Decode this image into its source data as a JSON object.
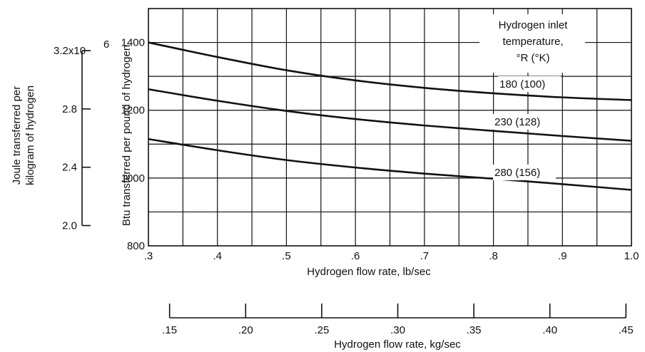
{
  "chart_data": {
    "type": "line",
    "xlabel": "Hydrogen flow rate, lb/sec",
    "xlim": [
      0.3,
      1.0
    ],
    "x_ticks": [
      ".3",
      ".4",
      ".5",
      ".6",
      ".7",
      ".8",
      ".9",
      "1.0"
    ],
    "ylabel": "Btu transferred per pound of hydrogen",
    "ylim": [
      800,
      1500
    ],
    "y_ticks": [
      "800",
      "1000",
      "1200",
      "1400"
    ],
    "grid": true,
    "secondary_y": {
      "label_lines": [
        "Joule transferred per",
        "kilogram of hydrogen"
      ],
      "ticks": [
        "2.0",
        "2.4",
        "2.8"
      ],
      "top_tick_base": "3.2x10",
      "top_tick_exp": "6"
    },
    "secondary_x": {
      "label": "Hydrogen flow rate, kg/sec",
      "ticks": [
        ".15",
        ".20",
        ".25",
        ".30",
        ".35",
        ".40",
        ".45"
      ]
    },
    "legend_title_lines": [
      "Hydrogen inlet",
      "temperature,",
      "°R (°K)"
    ],
    "series": [
      {
        "name": "180 (100)",
        "x": [
          0.3,
          0.4,
          0.5,
          0.6,
          0.7,
          0.8,
          0.9,
          1.0
        ],
        "y": [
          1400,
          1357,
          1318,
          1288,
          1266,
          1250,
          1238,
          1230
        ]
      },
      {
        "name": "230 (128)",
        "x": [
          0.3,
          0.4,
          0.5,
          0.6,
          0.7,
          0.8,
          0.9,
          1.0
        ],
        "y": [
          1262,
          1228,
          1198,
          1174,
          1155,
          1139,
          1124,
          1110
        ]
      },
      {
        "name": "280 (156)",
        "x": [
          0.3,
          0.4,
          0.5,
          0.6,
          0.7,
          0.8,
          0.9,
          1.0
        ],
        "y": [
          1115,
          1082,
          1053,
          1031,
          1013,
          998,
          982,
          965
        ]
      }
    ]
  }
}
